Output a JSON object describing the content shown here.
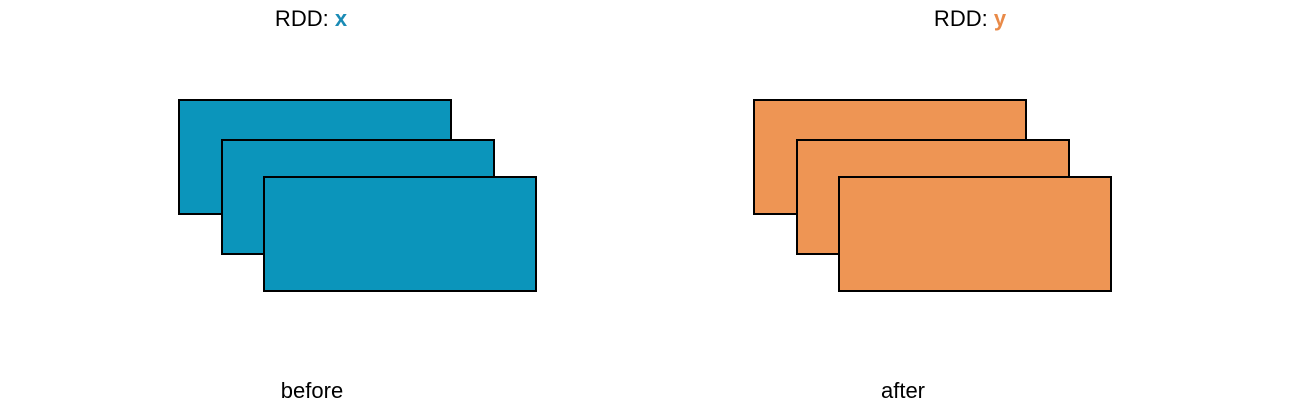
{
  "left": {
    "title_prefix": "RDD: ",
    "rdd_name": "x",
    "name_color": "#1a8bb5",
    "fill_color": "#0b95bb",
    "caption": "before",
    "partition_count": 3
  },
  "right": {
    "title_prefix": "RDD: ",
    "rdd_name": "y",
    "name_color": "#e98a48",
    "fill_color": "#ee9554",
    "caption": "after",
    "partition_count": 3
  }
}
